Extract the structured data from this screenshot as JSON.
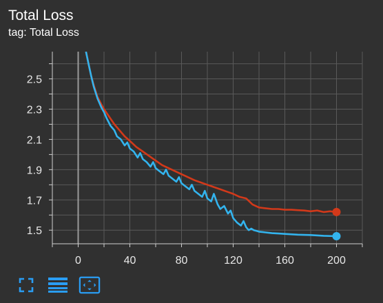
{
  "header": {
    "title": "Total Loss",
    "tag": "tag: Total Loss"
  },
  "toolbar": {
    "items": [
      {
        "name": "fullscreen-icon"
      },
      {
        "name": "list-icon"
      },
      {
        "name": "fit-domain-icon"
      }
    ]
  },
  "colors": {
    "background": "#303030",
    "grid": "#5a5a5a",
    "series_red": "#d2391a",
    "series_blue": "#33b4ee",
    "accent": "#2a9df4"
  },
  "chart_data": {
    "type": "line",
    "xlabel": "",
    "ylabel": "",
    "xlim": [
      -20,
      220
    ],
    "ylim": [
      1.41,
      2.68
    ],
    "xticks": [
      0,
      40,
      80,
      120,
      160,
      200
    ],
    "yticks": [
      1.5,
      1.7,
      1.9,
      2.1,
      2.3,
      2.5
    ],
    "ytick_labels": [
      "1.5",
      "1.7",
      "1.9",
      "2.1",
      "2.3",
      "2.5"
    ],
    "grid": true,
    "series": [
      {
        "color": "#d2391a",
        "x": [
          6,
          8,
          10,
          12,
          15,
          18,
          20,
          24,
          28,
          32,
          36,
          40,
          45,
          50,
          55,
          60,
          65,
          70,
          75,
          80,
          85,
          90,
          95,
          100,
          105,
          110,
          115,
          120,
          125,
          130,
          135,
          140,
          145,
          150,
          155,
          160,
          165,
          170,
          175,
          180,
          185,
          190,
          195,
          200
        ],
        "y": [
          2.68,
          2.6,
          2.52,
          2.46,
          2.38,
          2.33,
          2.3,
          2.25,
          2.2,
          2.16,
          2.12,
          2.09,
          2.05,
          2.02,
          1.99,
          1.96,
          1.93,
          1.91,
          1.89,
          1.87,
          1.85,
          1.83,
          1.815,
          1.8,
          1.785,
          1.77,
          1.755,
          1.74,
          1.72,
          1.71,
          1.67,
          1.65,
          1.645,
          1.64,
          1.64,
          1.635,
          1.635,
          1.632,
          1.63,
          1.625,
          1.63,
          1.62,
          1.625,
          1.62
        ]
      },
      {
        "color": "#33b4ee",
        "x": [
          6,
          8,
          10,
          12,
          15,
          18,
          20,
          22,
          25,
          28,
          30,
          33,
          36,
          38,
          40,
          43,
          46,
          48,
          50,
          53,
          56,
          58,
          60,
          63,
          66,
          68,
          70,
          73,
          76,
          78,
          80,
          83,
          86,
          88,
          90,
          93,
          96,
          98,
          100,
          103,
          105,
          108,
          110,
          113,
          116,
          118,
          120,
          123,
          126,
          128,
          130,
          132,
          134,
          136,
          138,
          140,
          145,
          150,
          155,
          160,
          170,
          180,
          190,
          200
        ],
        "y": [
          2.68,
          2.6,
          2.52,
          2.45,
          2.37,
          2.31,
          2.28,
          2.24,
          2.19,
          2.16,
          2.12,
          2.1,
          2.06,
          2.08,
          2.04,
          2.02,
          1.98,
          2.01,
          1.97,
          1.95,
          1.92,
          1.95,
          1.91,
          1.89,
          1.87,
          1.9,
          1.86,
          1.84,
          1.82,
          1.85,
          1.81,
          1.79,
          1.77,
          1.8,
          1.76,
          1.74,
          1.72,
          1.76,
          1.71,
          1.69,
          1.74,
          1.67,
          1.64,
          1.66,
          1.61,
          1.63,
          1.58,
          1.55,
          1.53,
          1.56,
          1.52,
          1.5,
          1.51,
          1.5,
          1.495,
          1.49,
          1.485,
          1.48,
          1.478,
          1.475,
          1.47,
          1.468,
          1.463,
          1.46
        ]
      }
    ]
  }
}
